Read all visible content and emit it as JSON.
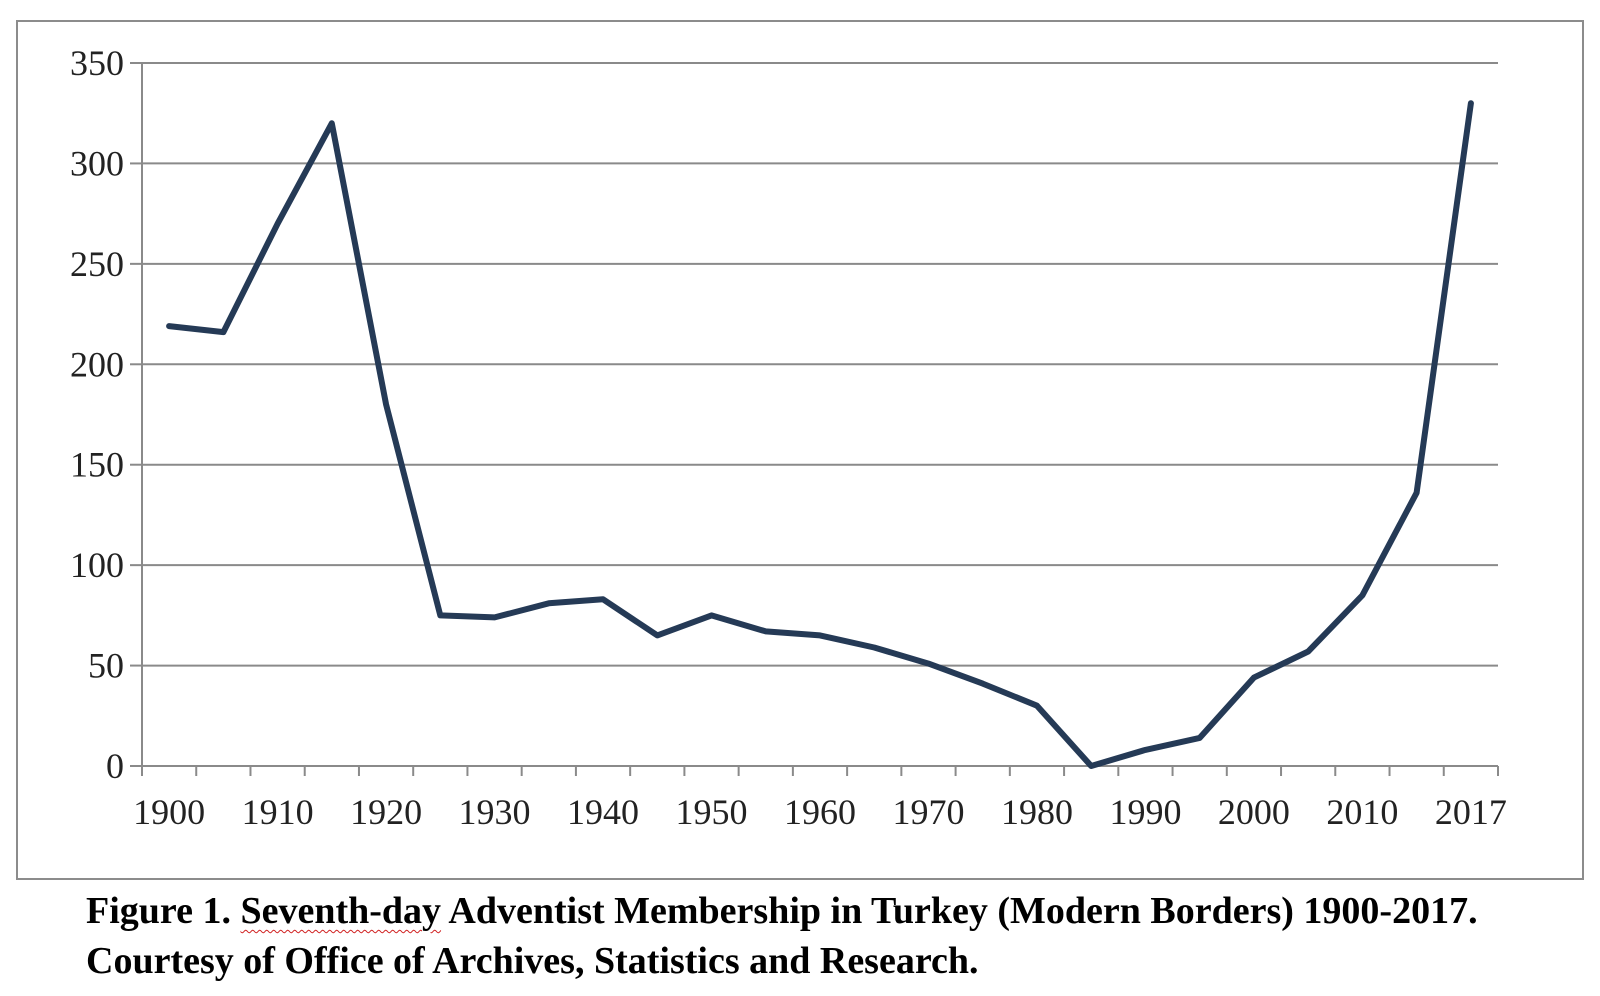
{
  "chart_data": {
    "type": "line",
    "title": "",
    "xlabel": "",
    "ylabel": "",
    "x": [
      1900,
      1905,
      1910,
      1915,
      1920,
      1925,
      1930,
      1935,
      1940,
      1945,
      1950,
      1955,
      1960,
      1965,
      1970,
      1975,
      1980,
      1985,
      1990,
      1995,
      2000,
      2005,
      2010,
      2015,
      2017
    ],
    "series": [
      {
        "name": "",
        "color": "#253a56",
        "values": [
          219,
          216,
          270,
          320,
          180,
          75,
          74,
          81,
          83,
          65,
          75,
          67,
          65,
          59,
          51,
          41,
          30,
          0,
          8,
          14,
          44,
          57,
          85,
          136,
          330
        ]
      }
    ],
    "x_tick_labels": [
      "1900",
      "1910",
      "1920",
      "1930",
      "1940",
      "1950",
      "1960",
      "1970",
      "1980",
      "1990",
      "2000",
      "2010",
      "2017"
    ],
    "y_ticks": [
      0,
      50,
      100,
      150,
      200,
      250,
      300,
      350
    ],
    "ylim": [
      0,
      350
    ],
    "grid": true,
    "legend": "none"
  },
  "caption": {
    "prefix": "Figure 1. ",
    "underlined": "Seventh-day",
    "rest": " Adventist Membership in Turkey (Modern Borders) 1900-2017. Courtesy of Office of Archives, Statistics and Research."
  }
}
